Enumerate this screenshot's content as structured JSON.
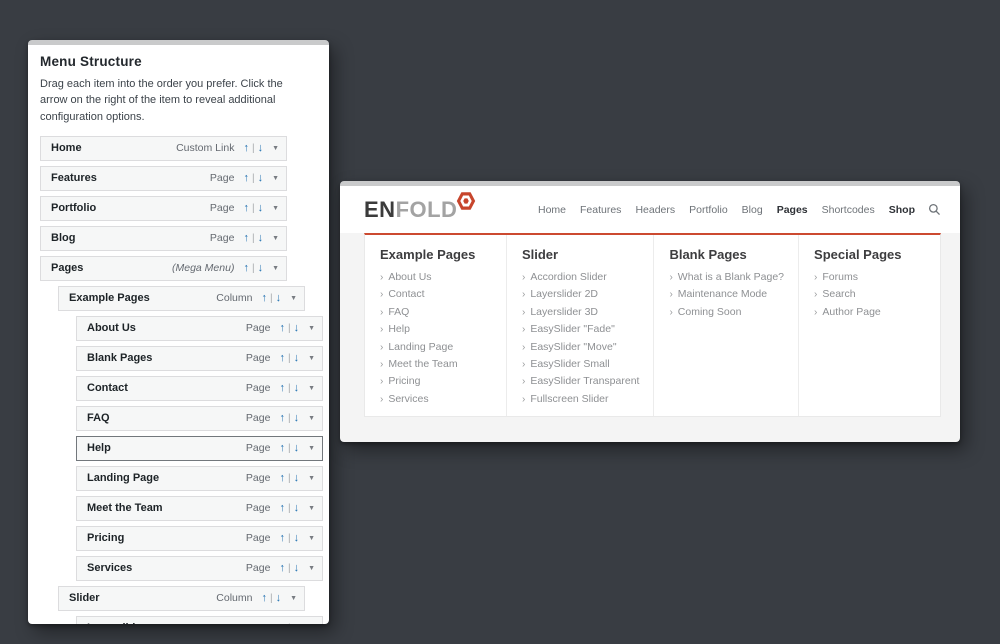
{
  "left_panel": {
    "title": "Menu Structure",
    "description": "Drag each item into the order you prefer. Click the arrow on the right of the item to reveal additional configuration options.",
    "icons": {
      "move_up": "↑",
      "separator": "|",
      "move_down": "↓",
      "toggle": "▼"
    },
    "items": [
      {
        "label": "Home",
        "type": "Custom Link",
        "level": 0,
        "highlighted": false
      },
      {
        "label": "Features",
        "type": "Page",
        "level": 0,
        "highlighted": false
      },
      {
        "label": "Portfolio",
        "type": "Page",
        "level": 0,
        "highlighted": false
      },
      {
        "label": "Blog",
        "type": "Page",
        "level": 0,
        "highlighted": false
      },
      {
        "label": "Pages",
        "type": "(Mega Menu)",
        "level": 0,
        "highlighted": false
      },
      {
        "label": "Example Pages",
        "type": "Column",
        "level": 1,
        "highlighted": false
      },
      {
        "label": "About Us",
        "type": "Page",
        "level": 2,
        "highlighted": false
      },
      {
        "label": "Blank Pages",
        "type": "Page",
        "level": 2,
        "highlighted": false
      },
      {
        "label": "Contact",
        "type": "Page",
        "level": 2,
        "highlighted": false
      },
      {
        "label": "FAQ",
        "type": "Page",
        "level": 2,
        "highlighted": false
      },
      {
        "label": "Help",
        "type": "Page",
        "level": 2,
        "highlighted": true
      },
      {
        "label": "Landing Page",
        "type": "Page",
        "level": 2,
        "highlighted": false
      },
      {
        "label": "Meet the Team",
        "type": "Page",
        "level": 2,
        "highlighted": false
      },
      {
        "label": "Pricing",
        "type": "Page",
        "level": 2,
        "highlighted": false
      },
      {
        "label": "Services",
        "type": "Page",
        "level": 2,
        "highlighted": false
      },
      {
        "label": "Slider",
        "type": "Column",
        "level": 1,
        "highlighted": false
      },
      {
        "label": "Layerslider",
        "type": "Page",
        "level": 2,
        "highlighted": false
      }
    ]
  },
  "site_preview": {
    "logo": {
      "primary": "EN",
      "secondary": "FOLD",
      "badge_icon": "hexagon-nut"
    },
    "nav": {
      "items": [
        {
          "label": "Home",
          "active": false
        },
        {
          "label": "Features",
          "active": false
        },
        {
          "label": "Headers",
          "active": false
        },
        {
          "label": "Portfolio",
          "active": false
        },
        {
          "label": "Blog",
          "active": false
        },
        {
          "label": "Pages",
          "active": true
        },
        {
          "label": "Shortcodes",
          "active": false
        },
        {
          "label": "Shop",
          "active": true
        }
      ],
      "search_icon": "magnifier"
    },
    "mega_menu": {
      "bullet_icon": "›",
      "columns": [
        {
          "heading": "Example Pages",
          "links": [
            "About Us",
            "Contact",
            "FAQ",
            "Help",
            "Landing Page",
            "Meet the Team",
            "Pricing",
            "Services"
          ]
        },
        {
          "heading": "Slider",
          "links": [
            "Accordion Slider",
            "Layerslider 2D",
            "Layerslider 3D",
            "EasySlider \"Fade\"",
            "EasySlider \"Move\"",
            "EasySlider Small",
            "EasySlider Transparent",
            "Fullscreen Slider"
          ]
        },
        {
          "heading": "Blank Pages",
          "links": [
            "What is a Blank Page?",
            "Maintenance Mode",
            "Coming Soon"
          ]
        },
        {
          "heading": "Special Pages",
          "links": [
            "Forums",
            "Search",
            "Author Page"
          ]
        }
      ]
    }
  },
  "colors": {
    "accent": "#cc4a30",
    "arrow_blue": "#2271b1",
    "background": "#393d43"
  }
}
